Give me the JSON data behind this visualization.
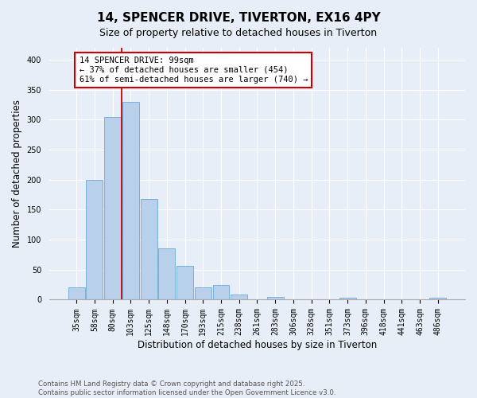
{
  "title": "14, SPENCER DRIVE, TIVERTON, EX16 4PY",
  "subtitle": "Size of property relative to detached houses in Tiverton",
  "xlabel": "Distribution of detached houses by size in Tiverton",
  "ylabel": "Number of detached properties",
  "categories": [
    "35sqm",
    "58sqm",
    "80sqm",
    "103sqm",
    "125sqm",
    "148sqm",
    "170sqm",
    "193sqm",
    "215sqm",
    "238sqm",
    "261sqm",
    "283sqm",
    "306sqm",
    "328sqm",
    "351sqm",
    "373sqm",
    "396sqm",
    "418sqm",
    "441sqm",
    "463sqm",
    "486sqm"
  ],
  "values": [
    20,
    200,
    305,
    330,
    168,
    85,
    57,
    20,
    25,
    8,
    0,
    5,
    0,
    0,
    0,
    3,
    0,
    0,
    0,
    0,
    3
  ],
  "bar_color": "#b8d0ea",
  "bar_edge_color": "#6aabd6",
  "vline_color": "#cc0000",
  "annotation_text": "14 SPENCER DRIVE: 99sqm\n← 37% of detached houses are smaller (454)\n61% of semi-detached houses are larger (740) →",
  "annotation_box_color": "#ffffff",
  "annotation_box_edge_color": "#cc0000",
  "title_fontsize": 11,
  "subtitle_fontsize": 9,
  "tick_fontsize": 7,
  "ylabel_fontsize": 8.5,
  "xlabel_fontsize": 8.5,
  "footer_text": "Contains HM Land Registry data © Crown copyright and database right 2025.\nContains public sector information licensed under the Open Government Licence v3.0.",
  "bg_color": "#e8eef8",
  "plot_bg_color": "#e8eef8",
  "ylim": [
    0,
    420
  ],
  "yticks": [
    0,
    50,
    100,
    150,
    200,
    250,
    300,
    350,
    400
  ]
}
